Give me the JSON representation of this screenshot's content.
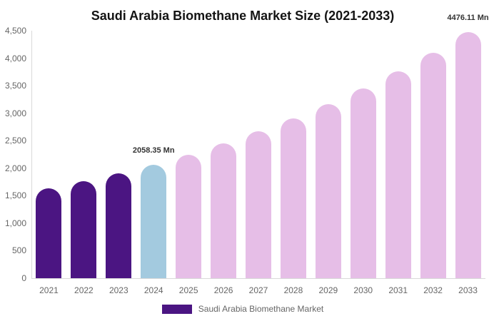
{
  "chart_data": {
    "type": "bar",
    "title": "Saudi Arabia Biomethane Market Size (2021-2033)",
    "xlabel": "",
    "ylabel": "",
    "categories": [
      "2021",
      "2022",
      "2023",
      "2024",
      "2025",
      "2026",
      "2027",
      "2028",
      "2029",
      "2030",
      "2031",
      "2032",
      "2033"
    ],
    "values": [
      1630,
      1760,
      1905,
      2058.35,
      2245,
      2445,
      2665,
      2905,
      3165,
      3450,
      3760,
      4100,
      4476.11
    ],
    "bar_colors": [
      "#4B1582",
      "#4B1582",
      "#4B1582",
      "#A3CADF",
      "#E6BEE7",
      "#E6BEE7",
      "#E6BEE7",
      "#E6BEE7",
      "#E6BEE7",
      "#E6BEE7",
      "#E6BEE7",
      "#E6BEE7",
      "#E6BEE7"
    ],
    "data_labels": [
      {
        "index": 3,
        "text": "2058.35 Mn"
      },
      {
        "index": 12,
        "text": "4476.11 Mn"
      }
    ],
    "ylim": [
      0,
      4500
    ],
    "ytick_step": 500,
    "yticks": [
      {
        "value": 0,
        "label": "0"
      },
      {
        "value": 500,
        "label": "500"
      },
      {
        "value": 1000,
        "label": "1,000"
      },
      {
        "value": 1500,
        "label": "1,500"
      },
      {
        "value": 2000,
        "label": "2,000"
      },
      {
        "value": 2500,
        "label": "2,500"
      },
      {
        "value": 3000,
        "label": "3,000"
      },
      {
        "value": 3500,
        "label": "3,500"
      },
      {
        "value": 4000,
        "label": "4,000"
      },
      {
        "value": 4500,
        "label": "4,500"
      }
    ],
    "grid": false,
    "legend_position": "bottom",
    "legend": [
      {
        "label": "Saudi Arabia Biomethane Market",
        "color": "#4B1582"
      }
    ]
  },
  "colors": {
    "background": "#ffffff",
    "axis_line": "#d9d9d9",
    "tick_text": "#666666",
    "data_label_text": "#333333",
    "title_text": "#141414",
    "historical_bar": "#4B1582",
    "base_year_bar": "#A3CADF",
    "forecast_bar": "#E6BEE7"
  }
}
